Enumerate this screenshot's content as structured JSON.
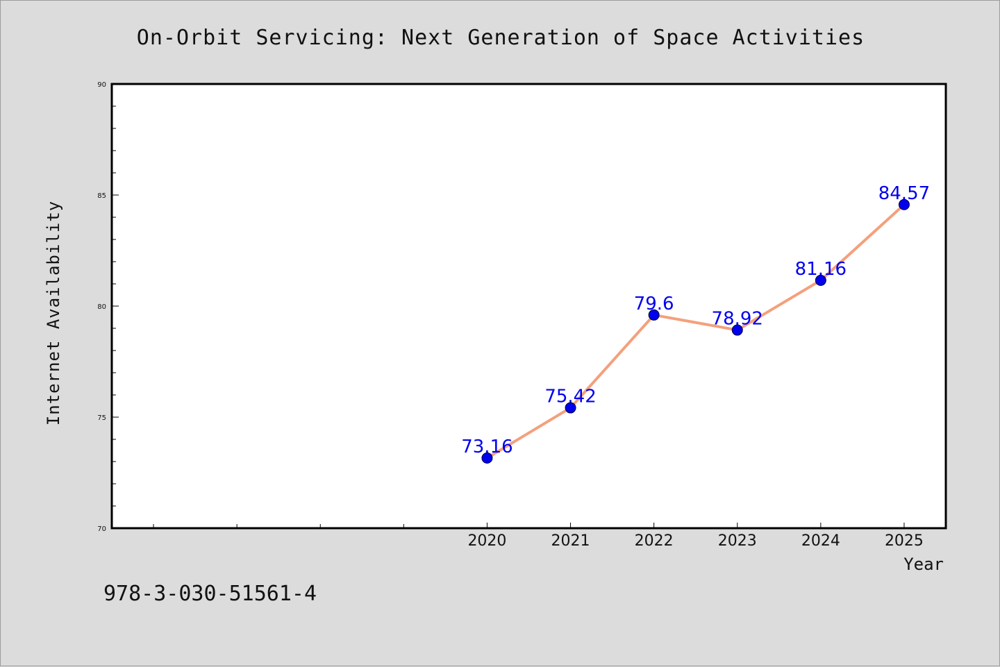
{
  "chart_data": {
    "type": "line",
    "title": "On-Orbit Servicing: Next Generation of Space Activities",
    "xlabel": "Year",
    "ylabel": "Internet Availability",
    "x": [
      2020,
      2021,
      2022,
      2023,
      2024,
      2025
    ],
    "series": [
      {
        "values": [
          73.16,
          75.42,
          79.6,
          78.92,
          81.16,
          84.57
        ]
      }
    ],
    "data_labels": [
      "73.16",
      "75.42",
      "79.6",
      "78.92",
      "81.16",
      "84.57"
    ],
    "xlim": [
      2015.5,
      2025.5
    ],
    "ylim": [
      70,
      90
    ],
    "yticks": [
      70,
      75,
      80,
      85,
      90
    ],
    "xticks_labeled": [
      2020,
      2021,
      2022,
      2023,
      2024,
      2025
    ],
    "xticks_unlabeled": [
      2016,
      2017,
      2018,
      2019
    ],
    "grid": false,
    "colors": {
      "line": "#f4a07c",
      "marker": "#0000ee",
      "labels": "#0000ee"
    }
  },
  "footer": {
    "isbn": "978-3-030-51561-4"
  }
}
